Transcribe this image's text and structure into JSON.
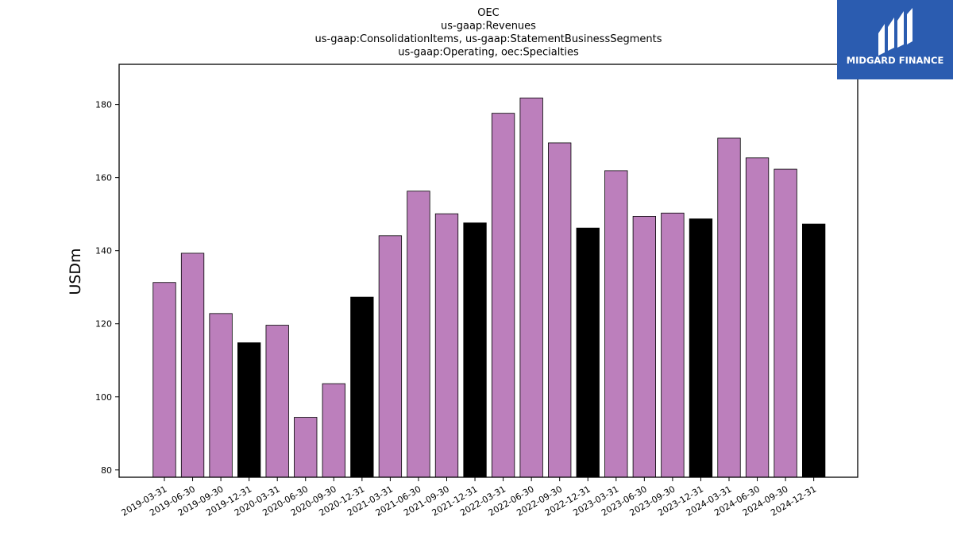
{
  "chart_data": {
    "type": "bar",
    "title_lines": [
      "OEC",
      "us-gaap:Revenues",
      "us-gaap:ConsolidationItems, us-gaap:StatementBusinessSegments",
      "us-gaap:Operating, oec:Specialties"
    ],
    "xlabel": "",
    "ylabel": "USDm",
    "ylim": [
      78,
      191
    ],
    "yticks": [
      80,
      100,
      120,
      140,
      160,
      180
    ],
    "grid": false,
    "categories": [
      "2019-03-31",
      "2019-06-30",
      "2019-09-30",
      "2019-12-31",
      "2020-03-31",
      "2020-06-30",
      "2020-09-30",
      "2020-12-31",
      "2021-03-31",
      "2021-06-30",
      "2021-09-30",
      "2021-12-31",
      "2022-03-31",
      "2022-06-30",
      "2022-09-30",
      "2022-12-31",
      "2023-03-31",
      "2023-06-30",
      "2023-09-30",
      "2023-12-31",
      "2024-03-31",
      "2024-06-30",
      "2024-09-30",
      "2024-12-31"
    ],
    "values": [
      131.3,
      139.3,
      122.8,
      114.8,
      119.6,
      94.4,
      103.6,
      127.3,
      144.1,
      156.3,
      150.1,
      147.6,
      177.6,
      181.8,
      169.5,
      146.2,
      161.9,
      149.4,
      150.3,
      148.7,
      170.8,
      165.4,
      162.3,
      147.3
    ],
    "colors": {
      "quarter": "#bc7fbc",
      "year_end": "#000000",
      "edge": "#000000"
    },
    "bar_color_keys": [
      "quarter",
      "quarter",
      "quarter",
      "year_end",
      "quarter",
      "quarter",
      "quarter",
      "year_end",
      "quarter",
      "quarter",
      "quarter",
      "year_end",
      "quarter",
      "quarter",
      "quarter",
      "year_end",
      "quarter",
      "quarter",
      "quarter",
      "year_end",
      "quarter",
      "quarter",
      "quarter",
      "year_end"
    ]
  },
  "logo": {
    "text": "MIDGARD FINANCE",
    "background": "#2b5cb0",
    "icon": "midgard-logo-icon"
  }
}
